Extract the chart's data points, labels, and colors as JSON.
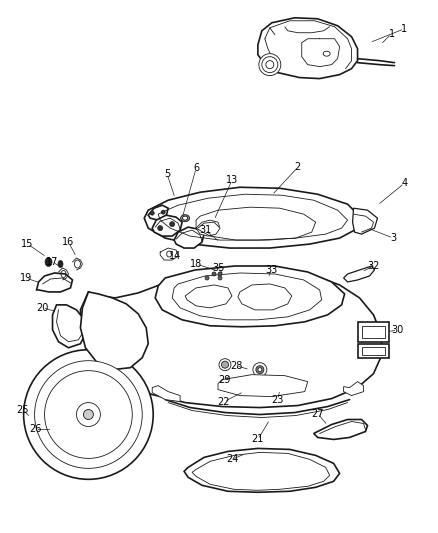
{
  "background_color": "#ffffff",
  "line_color": "#1a1a1a",
  "label_color": "#000000",
  "fig_width": 4.38,
  "fig_height": 5.33,
  "dpi": 100,
  "label_font": 7.0
}
